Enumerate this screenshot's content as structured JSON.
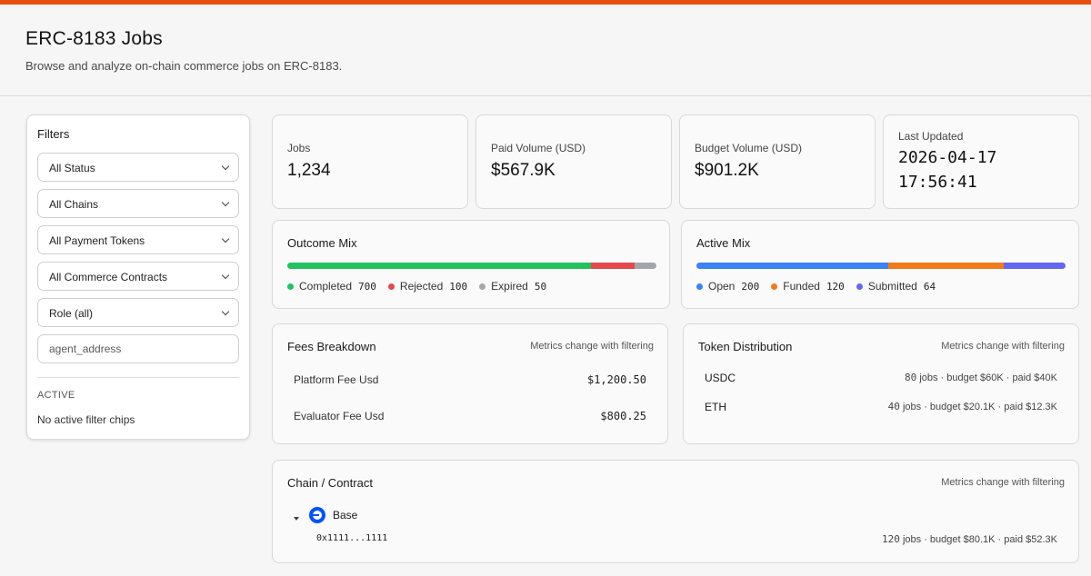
{
  "header": {
    "title": "ERC-8183 Jobs",
    "subtitle": "Browse and analyze on-chain commerce jobs on ERC-8183."
  },
  "filters": {
    "title": "Filters",
    "status": "All Status",
    "chains": "All Chains",
    "payment_tokens": "All Payment Tokens",
    "commerce_contracts": "All Commerce Contracts",
    "role": "Role (all)",
    "agent_placeholder": "agent_address",
    "active_label": "ACTIVE",
    "active_empty": "No active filter chips"
  },
  "stats": {
    "jobs_label": "Jobs",
    "jobs_value": "1,234",
    "paid_label": "Paid Volume (USD)",
    "paid_value": "$567.9K",
    "budget_label": "Budget Volume (USD)",
    "budget_value": "$901.2K",
    "updated_label": "Last Updated",
    "updated_date": "2026-04-17",
    "updated_time": "17:56:41"
  },
  "outcome_mix": {
    "title": "Outcome Mix",
    "segments": [
      {
        "label": "Completed",
        "value": "700",
        "count": 700,
        "color": "#22c35e"
      },
      {
        "label": "Rejected",
        "value": "100",
        "count": 100,
        "color": "#e5484d"
      },
      {
        "label": "Expired",
        "value": "50",
        "count": 50,
        "color": "#a3a6ab"
      }
    ]
  },
  "active_mix": {
    "title": "Active Mix",
    "segments": [
      {
        "label": "Open",
        "value": "200",
        "count": 200,
        "color": "#3b82f6"
      },
      {
        "label": "Funded",
        "value": "120",
        "count": 120,
        "color": "#f27a1a"
      },
      {
        "label": "Submitted",
        "value": "64",
        "count": 64,
        "color": "#6366f1"
      }
    ]
  },
  "fees": {
    "title": "Fees Breakdown",
    "note": "Metrics change with filtering",
    "platform_label": "Platform Fee Usd",
    "platform_value": "$1,200.50",
    "evaluator_label": "Evaluator Fee Usd",
    "evaluator_value": "$800.25"
  },
  "tokens": {
    "title": "Token Distribution",
    "note": "Metrics change with filtering",
    "rows": [
      {
        "name": "USDC",
        "count": "80",
        "detail": " jobs · budget $60K · paid $40K"
      },
      {
        "name": "ETH",
        "count": "40",
        "detail": " jobs · budget $20.1K · paid $12.3K"
      }
    ]
  },
  "chain_contract": {
    "title": "Chain / Contract",
    "note": "Metrics change with filtering",
    "chain_name": "Base",
    "contract_address": "0x1111...1111",
    "contract_count": "120",
    "contract_detail": " jobs · budget $80.1K · paid $52.3K"
  }
}
